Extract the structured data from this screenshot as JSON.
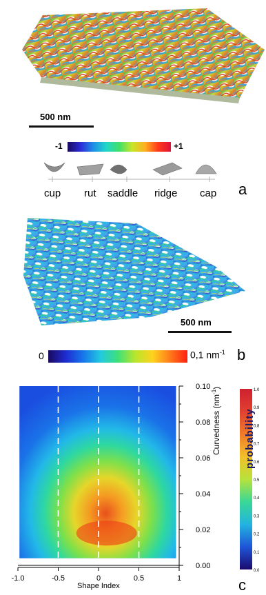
{
  "panel_a": {
    "scale_label": "500 nm",
    "colorbar_min": "-1",
    "colorbar_max": "+1",
    "shapes": [
      "cup",
      "rut",
      "saddle",
      "ridge",
      "cap"
    ],
    "letter": "a",
    "colorbar_colors": [
      "#1a0a5e",
      "#2b2bd6",
      "#1f8fe8",
      "#22d6c8",
      "#3fe06a",
      "#c8e62a",
      "#ffb020",
      "#ff3a1a",
      "#e0123a"
    ]
  },
  "panel_b": {
    "scale_label": "500 nm",
    "colorbar_min": "0",
    "colorbar_max": "0,1 nm",
    "colorbar_max_sup": "-1",
    "letter": "b",
    "colorbar_colors": [
      "#1a0a5e",
      "#1e2bd0",
      "#1676ea",
      "#22c8e0",
      "#3ee07a",
      "#b8e62c",
      "#ffd21e",
      "#ff7a1a",
      "#ff2010"
    ]
  },
  "panel_c": {
    "letter": "c",
    "prob_label": "probability",
    "prob_ticks": [
      "1.0",
      "0.9",
      "0.8",
      "0.7",
      "0.6",
      "0.5",
      "0.4",
      "0.3",
      "0.2",
      "0.1",
      "0.0"
    ],
    "prob_colors": [
      "#1a0a6e",
      "#1f55d8",
      "#22b4e0",
      "#3ad896",
      "#b8e23a",
      "#f2c02a",
      "#f07a2a",
      "#e04030",
      "#d02030"
    ]
  },
  "chart_data": {
    "type": "heatmap",
    "xlabel": "Shape Index",
    "ylabel": "Curvedness (nm",
    "ylabel_sup": "-1",
    "ylabel_close": ")",
    "xlim": [
      -1.0,
      1.0
    ],
    "ylim": [
      0.0,
      0.1
    ],
    "x_ticks": [
      "-1.0",
      "-0.5",
      "0",
      "0.5",
      "1"
    ],
    "y_ticks": [
      "0.10",
      "0.08",
      "0.06",
      "0.04",
      "0.02",
      "0.00"
    ],
    "dashed_lines_x": [
      -0.5,
      0.0,
      0.5
    ],
    "peak": {
      "x": 0.1,
      "y": 0.018,
      "probability": 1.0
    }
  }
}
